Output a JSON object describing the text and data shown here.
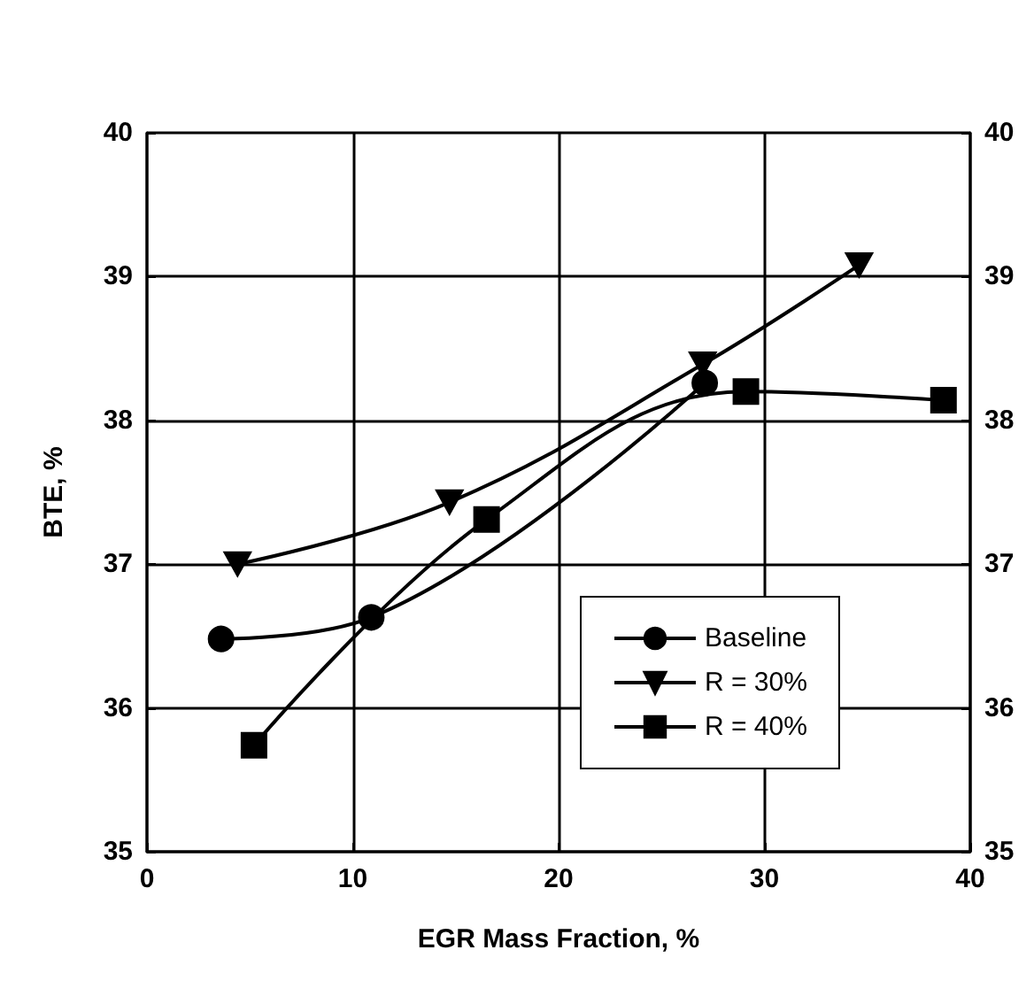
{
  "chart_data": {
    "type": "line",
    "xlabel": "EGR Mass Fraction, %",
    "ylabel": "BTE, %",
    "xlim": [
      0,
      40
    ],
    "xticks": [
      0,
      10,
      20,
      30,
      40
    ],
    "ylim": [
      35,
      40
    ],
    "yticks": [
      35,
      36,
      37,
      38,
      39,
      40
    ],
    "y2lim": [
      35,
      40
    ],
    "y2ticks": [
      35,
      36,
      37,
      38,
      39,
      40
    ],
    "grid": true,
    "legend": "bottom right",
    "line_style": "solid",
    "series": [
      {
        "name": "Baseline",
        "color": "#000000",
        "marker": "circle",
        "x": [
          3.6,
          10.9,
          27.1
        ],
        "values": [
          36.48,
          36.63,
          38.26
        ]
      },
      {
        "name": "R = 30%",
        "color": "#000000",
        "marker": "triangle",
        "x": [
          4.4,
          14.7,
          27.0,
          34.6
        ],
        "values": [
          37.0,
          37.43,
          38.39,
          39.08
        ]
      },
      {
        "name": "R = 40%",
        "color": "#000000",
        "marker": "square",
        "x": [
          5.2,
          16.5,
          29.1,
          38.7
        ],
        "values": [
          35.74,
          37.31,
          38.2,
          38.14
        ]
      }
    ]
  }
}
